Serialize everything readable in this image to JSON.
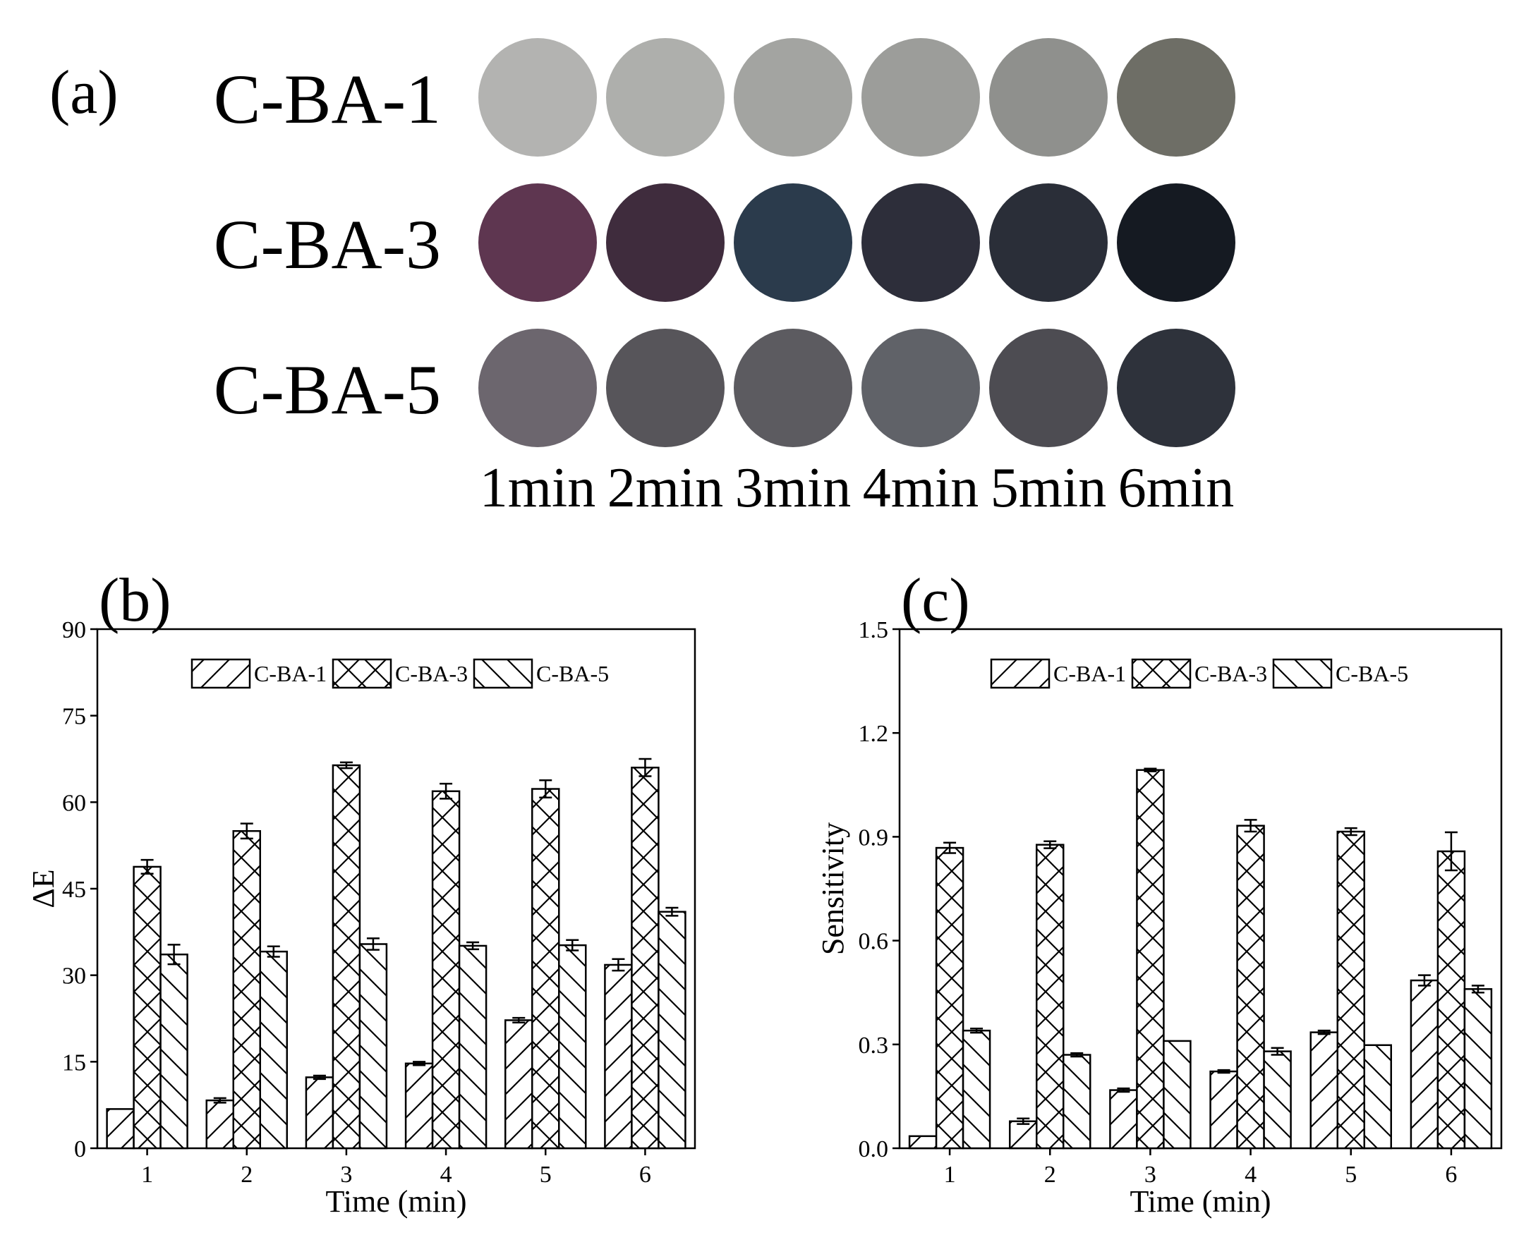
{
  "panel_a": {
    "label": "(a)",
    "rows": [
      {
        "name": "C-BA-1",
        "colors": [
          "#b3b3b1",
          "#aeafac",
          "#a3a4a1",
          "#9c9d9a",
          "#8f908d",
          "#6e6e66"
        ]
      },
      {
        "name": "C-BA-3",
        "colors": [
          "#5e3650",
          "#3f2c3d",
          "#2b3b4c",
          "#2d2e3a",
          "#2a2e38",
          "#151a22"
        ]
      },
      {
        "name": "C-BA-5",
        "colors": [
          "#6c666e",
          "#57555a",
          "#5c5b60",
          "#606268",
          "#4d4c52",
          "#2e323b"
        ]
      }
    ],
    "times": [
      "1min",
      "2min",
      "3min",
      "4min",
      "5min",
      "6min"
    ]
  },
  "chart_data": [
    {
      "type": "bar",
      "panel_label": "(b)",
      "xlabel": "Time (min)",
      "ylabel": "ΔE",
      "categories": [
        "1",
        "2",
        "3",
        "4",
        "5",
        "6"
      ],
      "ylim": [
        0,
        90
      ],
      "yticks": [
        "0",
        "15",
        "30",
        "45",
        "60",
        "75",
        "90"
      ],
      "legend_position": "top",
      "series": [
        {
          "name": "C-BA-1",
          "pattern": "forward-hatch",
          "values": [
            6.8,
            8.3,
            12.3,
            14.7,
            22.2,
            31.8
          ],
          "errors": [
            0,
            0.4,
            0.3,
            0.3,
            0.4,
            1.0
          ]
        },
        {
          "name": "C-BA-3",
          "pattern": "cross-hatch",
          "values": [
            48.8,
            55.0,
            66.4,
            61.9,
            62.3,
            66.0
          ],
          "errors": [
            1.2,
            1.3,
            0.5,
            1.3,
            1.5,
            1.5
          ]
        },
        {
          "name": "C-BA-5",
          "pattern": "back-hatch",
          "values": [
            33.6,
            34.1,
            35.4,
            35.1,
            35.2,
            41.0
          ],
          "errors": [
            1.7,
            0.9,
            1.0,
            0.6,
            0.9,
            0.7
          ]
        }
      ]
    },
    {
      "type": "bar",
      "panel_label": "(c)",
      "xlabel": "Time (min)",
      "ylabel": "Sensitivity",
      "categories": [
        "1",
        "2",
        "3",
        "4",
        "5",
        "6"
      ],
      "ylim": [
        0,
        1.5
      ],
      "yticks": [
        "0.0",
        "0.3",
        "0.6",
        "0.9",
        "1.2",
        "1.5"
      ],
      "legend_position": "top",
      "series": [
        {
          "name": "C-BA-1",
          "pattern": "forward-hatch",
          "values": [
            0.035,
            0.078,
            0.168,
            0.222,
            0.335,
            0.485
          ],
          "errors": [
            0,
            0.008,
            0.005,
            0.004,
            0.005,
            0.015
          ]
        },
        {
          "name": "C-BA-3",
          "pattern": "cross-hatch",
          "values": [
            0.868,
            0.877,
            1.093,
            0.932,
            0.915,
            0.858
          ],
          "errors": [
            0.015,
            0.01,
            0.004,
            0.017,
            0.01,
            0.055
          ]
        },
        {
          "name": "C-BA-5",
          "pattern": "back-hatch",
          "values": [
            0.34,
            0.27,
            0.31,
            0.28,
            0.298,
            0.46
          ],
          "errors": [
            0.006,
            0.005,
            0,
            0.01,
            0,
            0.01
          ]
        }
      ]
    }
  ]
}
